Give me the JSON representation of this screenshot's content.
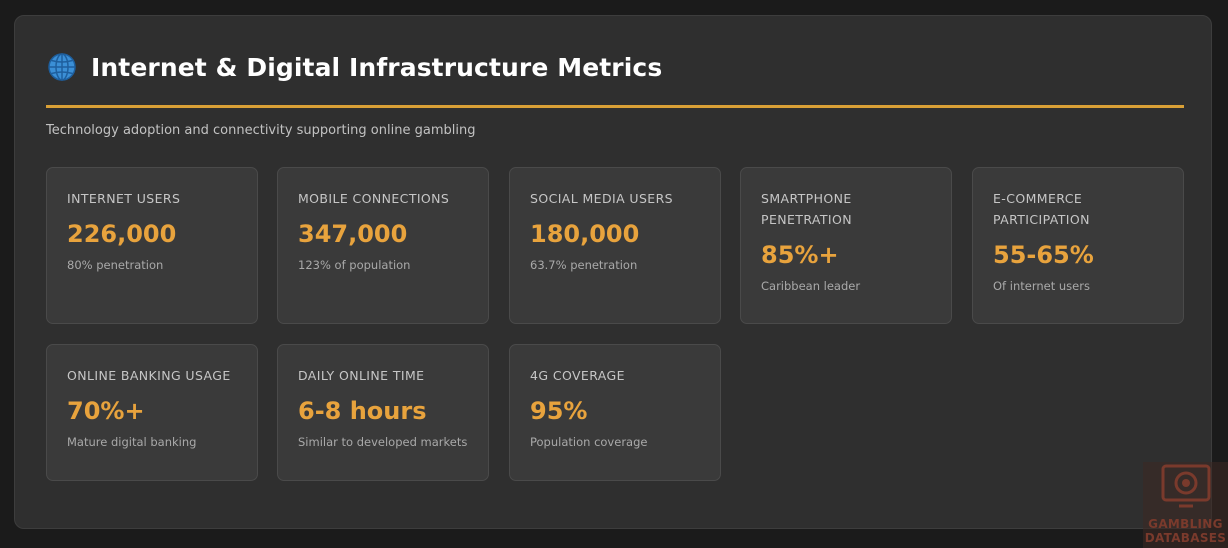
{
  "header": {
    "icon": "globe-icon",
    "title": "Internet & Digital Infrastructure Metrics",
    "subtitle": "Technology adoption and connectivity supporting online gambling"
  },
  "colors": {
    "accent": "#e8a33d",
    "rule": "#d9a036",
    "panel": "#2f2f2f",
    "card": "#3a3a3a"
  },
  "metrics": [
    {
      "label": "Internet Users",
      "value": "226,000",
      "note": "80% penetration"
    },
    {
      "label": "Mobile Connections",
      "value": "347,000",
      "note": "123% of population"
    },
    {
      "label": "Social Media Users",
      "value": "180,000",
      "note": "63.7% penetration"
    },
    {
      "label": "Smartphone Penetration",
      "value": "85%+",
      "note": "Caribbean leader"
    },
    {
      "label": "E-Commerce Participation",
      "value": "55-65%",
      "note": "Of internet users"
    },
    {
      "label": "Online Banking Usage",
      "value": "70%+",
      "note": "Mature digital banking"
    },
    {
      "label": "Daily Online Time",
      "value": "6-8 hours",
      "note": "Similar to developed markets"
    },
    {
      "label": "4G Coverage",
      "value": "95%",
      "note": "Population coverage"
    }
  ],
  "watermark": {
    "line1": "GAMBLING",
    "line2": "DATABASES"
  }
}
